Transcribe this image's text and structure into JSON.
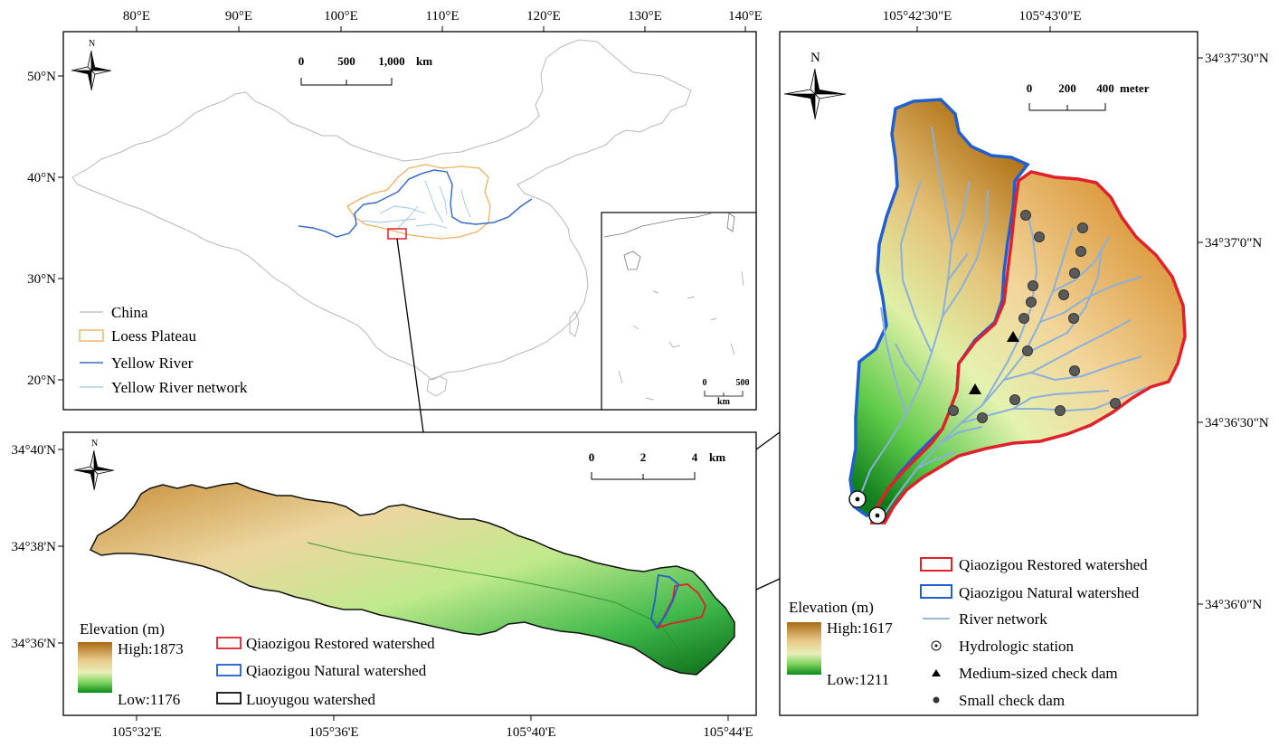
{
  "panel_a": {
    "lon_ticks": [
      "80°E",
      "90°E",
      "100°E",
      "110°E",
      "120°E",
      "130°E",
      "140°E"
    ],
    "lat_ticks": [
      "50°N",
      "40°N",
      "30°N",
      "20°N"
    ],
    "north": "N",
    "scale": [
      "0",
      "500",
      "1,000",
      "km"
    ],
    "inset_scale": [
      "0",
      "500",
      "km"
    ],
    "legend": [
      "China",
      "Loess Plateau",
      "Yellow River",
      "Yellow River network"
    ]
  },
  "panel_b": {
    "lon_ticks": [
      "105°32'E",
      "105°36'E",
      "105°40'E",
      "105°44'E"
    ],
    "lat_ticks": [
      "34°40'N",
      "34°38'N",
      "34°36'N"
    ],
    "north": "N",
    "scale": [
      "0",
      "2",
      "4",
      "km"
    ],
    "elevation_title": "Elevation (m)",
    "elevation_high": "High:1873",
    "elevation_low": "Low:1176",
    "legend": [
      "Qiaozigou Restored watershed",
      "Qiaozigou Natural watershed",
      "Luoyugou watershed"
    ]
  },
  "panel_c": {
    "lon_ticks": [
      "105°42'30\"E",
      "105°43'0\"E"
    ],
    "lat_ticks": [
      "34°37'30\"N",
      "34°37'0\"N",
      "34°36'30\"N",
      "34°36'0\"N"
    ],
    "north": "N",
    "scale": [
      "0",
      "200",
      "400",
      "meter"
    ],
    "elevation_title": "Elevation (m)",
    "elevation_high": "High:1617",
    "elevation_low": "Low:1211",
    "legend": [
      "Qiaozigou Restored watershed",
      "Qiaozigou Natural watershed",
      "River network",
      "Hydrologic station",
      "Medium-sized check dam",
      "Small check dam"
    ]
  },
  "colors": {
    "restored": "#e0202a",
    "natural": "#1f5fd0",
    "loess": "#f0b060",
    "river": "#3a6cc8",
    "network": "#9cc4e8"
  }
}
